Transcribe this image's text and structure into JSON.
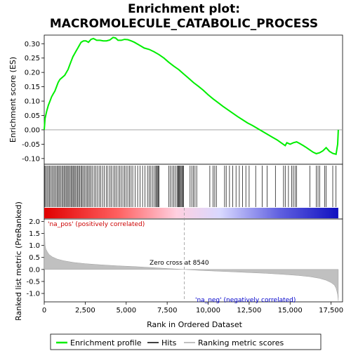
{
  "chart_data": {
    "type": "line",
    "title_line1": "Enrichment plot:",
    "title_line2": "MACROMOLECULE_CATABOLIC_PROCESS",
    "top_panel": {
      "ylabel": "Enrichment score (ES)",
      "ylim": [
        -0.12,
        0.33
      ],
      "yticks": [
        -0.1,
        -0.05,
        0.0,
        0.05,
        0.1,
        0.15,
        0.2,
        0.25,
        0.3
      ],
      "ytick_labels": [
        "-0.10",
        "-0.05",
        "0.00",
        "0.05",
        "0.10",
        "0.15",
        "0.20",
        "0.25",
        "0.30"
      ],
      "series_name": "Enrichment profile",
      "color": "#00ee00",
      "x": [
        0,
        50,
        150,
        250,
        350,
        450,
        550,
        650,
        750,
        850,
        950,
        1050,
        1150,
        1250,
        1350,
        1450,
        1550,
        1650,
        1750,
        1850,
        1950,
        2050,
        2150,
        2250,
        2400,
        2550,
        2700,
        2850,
        3000,
        3200,
        3400,
        3600,
        3800,
        4000,
        4200,
        4350,
        4500,
        4700,
        4900,
        5100,
        5300,
        5500,
        5800,
        6100,
        6400,
        6700,
        7000,
        7300,
        7600,
        7900,
        8200,
        8500,
        8800,
        9100,
        9400,
        9700,
        10000,
        10300,
        10600,
        10900,
        11200,
        11500,
        11800,
        12100,
        12400,
        12700,
        13000,
        13300,
        13600,
        13900,
        14200,
        14500,
        14700,
        14800,
        15000,
        15200,
        15400,
        15600,
        15800,
        16000,
        16200,
        16400,
        16600,
        16800,
        17000,
        17200,
        17400,
        17600,
        17800,
        17900,
        17940
      ],
      "y": [
        0.0,
        0.04,
        0.065,
        0.085,
        0.1,
        0.115,
        0.125,
        0.135,
        0.15,
        0.165,
        0.175,
        0.18,
        0.185,
        0.19,
        0.2,
        0.21,
        0.225,
        0.24,
        0.255,
        0.265,
        0.275,
        0.285,
        0.295,
        0.305,
        0.31,
        0.31,
        0.305,
        0.315,
        0.318,
        0.312,
        0.312,
        0.31,
        0.31,
        0.313,
        0.322,
        0.32,
        0.312,
        0.312,
        0.315,
        0.314,
        0.31,
        0.305,
        0.295,
        0.285,
        0.28,
        0.272,
        0.262,
        0.25,
        0.235,
        0.222,
        0.21,
        0.195,
        0.18,
        0.165,
        0.152,
        0.138,
        0.122,
        0.108,
        0.095,
        0.082,
        0.07,
        0.058,
        0.046,
        0.035,
        0.024,
        0.015,
        0.005,
        -0.005,
        -0.015,
        -0.025,
        -0.035,
        -0.047,
        -0.055,
        -0.045,
        -0.05,
        -0.045,
        -0.042,
        -0.048,
        -0.055,
        -0.062,
        -0.07,
        -0.078,
        -0.083,
        -0.08,
        -0.073,
        -0.062,
        -0.075,
        -0.082,
        -0.085,
        -0.05,
        0.0
      ]
    },
    "middle_panel": {
      "series_name": "Hits",
      "hit_positions": [
        40,
        110,
        180,
        260,
        330,
        410,
        480,
        560,
        640,
        720,
        790,
        860,
        930,
        1010,
        1080,
        1150,
        1220,
        1290,
        1360,
        1420,
        1490,
        1560,
        1630,
        1700,
        1760,
        1830,
        1890,
        1960,
        2030,
        2100,
        2170,
        2240,
        2310,
        2380,
        2460,
        2540,
        2620,
        2700,
        2780,
        2860,
        2950,
        3050,
        3150,
        3250,
        3350,
        3450,
        3560,
        3670,
        3780,
        3890,
        4000,
        4100,
        4200,
        4300,
        4400,
        4500,
        4600,
        4700,
        4800,
        4900,
        5000,
        5100,
        5200,
        5300,
        5400,
        5550,
        5700,
        5850,
        6000,
        6150,
        6300,
        6400,
        6500,
        6600,
        6700,
        6800,
        6850,
        6900,
        6950,
        7000,
        7600,
        7700,
        7800,
        7900,
        8000,
        8100,
        8150,
        8200,
        8250,
        8300,
        8350,
        8400,
        8450,
        8500,
        8900,
        9000,
        9100,
        9200,
        9300,
        10100,
        10300,
        10400,
        10500,
        11000,
        11100,
        11300,
        11500,
        11700,
        11900,
        12100,
        12300,
        12500,
        12900,
        13300,
        13600,
        14100,
        14600,
        14700,
        14900,
        15100,
        15200,
        15300,
        15400,
        16200,
        16600,
        16700,
        16800,
        17100,
        17200,
        17600,
        17800
      ]
    },
    "bottom_panel": {
      "ylabel": "Ranked list metric (PreRanked)",
      "ylim": [
        -1.35,
        2.1
      ],
      "yticks": [
        -1.0,
        -0.5,
        0.0,
        0.5,
        1.0,
        1.5,
        2.0
      ],
      "ytick_labels": [
        "-1.0",
        "-0.5",
        "0.0",
        "0.5",
        "1.0",
        "1.5",
        "2.0"
      ],
      "series_name": "Ranking metric scores",
      "x": [
        0,
        50,
        100,
        200,
        300,
        500,
        800,
        1200,
        1800,
        2500,
        3500,
        4500,
        5500,
        6500,
        7500,
        8540,
        9500,
        10500,
        11500,
        12500,
        13500,
        14500,
        15500,
        16200,
        16800,
        17200,
        17500,
        17700,
        17800,
        17850,
        17900,
        17940
      ],
      "y": [
        2.05,
        1.0,
        0.85,
        0.72,
        0.62,
        0.52,
        0.43,
        0.36,
        0.29,
        0.24,
        0.19,
        0.15,
        0.12,
        0.08,
        0.04,
        0.0,
        -0.04,
        -0.07,
        -0.1,
        -0.13,
        -0.16,
        -0.2,
        -0.25,
        -0.3,
        -0.37,
        -0.45,
        -0.55,
        -0.65,
        -0.78,
        -0.9,
        -1.05,
        -1.3
      ],
      "pos_label": "'na_pos' (positively correlated)",
      "neg_label": "'na_neg' (negatively correlated)",
      "zero_cross_label": "Zero cross at 8540",
      "zero_cross": 8540
    },
    "xlabel": "Rank in Ordered Dataset",
    "xlim": [
      0,
      18200
    ],
    "xticks": [
      0,
      2500,
      5000,
      7500,
      10000,
      12500,
      15000,
      17500
    ],
    "xtick_labels": [
      "0",
      "2,500",
      "5,000",
      "7,500",
      "10,000",
      "12,500",
      "15,000",
      "17,500"
    ],
    "legend": {
      "items": [
        {
          "label": "Enrichment profile",
          "color": "#00ee00"
        },
        {
          "label": "Hits",
          "color": "#000000"
        },
        {
          "label": "Ranking metric scores",
          "color": "#c0c0c0"
        }
      ]
    },
    "colors": {
      "pos_label": "#cc0000",
      "neg_label": "#0000cc",
      "metric_fill": "#c0c0c0",
      "ramp_red": "#e00000",
      "ramp_blue": "#0000e0"
    }
  }
}
